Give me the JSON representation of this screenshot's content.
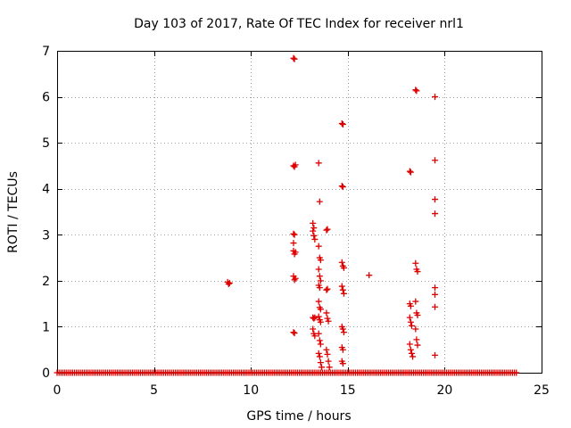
{
  "chart_data": {
    "type": "scatter",
    "title": "Day 103 of 2017, Rate Of TEC Index for receiver nrl1",
    "xlabel": "GPS time / hours",
    "ylabel": "ROTI / TECUs",
    "xlim": [
      0,
      25
    ],
    "ylim": [
      0,
      7
    ],
    "x_ticks": [
      0,
      5,
      10,
      15,
      20,
      25
    ],
    "y_ticks": [
      0,
      1,
      2,
      3,
      4,
      5,
      6,
      7
    ],
    "x_tick_labels": [
      "0",
      "5",
      "10",
      "15",
      "20",
      "25"
    ],
    "y_tick_labels": [
      "0",
      "1",
      "2",
      "3",
      "4",
      "5",
      "6",
      "7"
    ],
    "grid": true,
    "legend": "none",
    "marker": "plus",
    "color": "#dd0000",
    "baseline": {
      "y": 0,
      "x_range": [
        0,
        23.7
      ],
      "x_step": 0.1
    },
    "points": [
      [
        8.8,
        1.97
      ],
      [
        8.85,
        1.93
      ],
      [
        8.9,
        1.95
      ],
      [
        12.2,
        6.84
      ],
      [
        12.25,
        6.82
      ],
      [
        12.2,
        4.5
      ],
      [
        12.25,
        4.48
      ],
      [
        12.3,
        4.52
      ],
      [
        12.2,
        3.02
      ],
      [
        12.25,
        3.0
      ],
      [
        12.2,
        2.82
      ],
      [
        12.2,
        2.65
      ],
      [
        12.25,
        2.58
      ],
      [
        12.3,
        2.62
      ],
      [
        12.2,
        2.1
      ],
      [
        12.25,
        2.02
      ],
      [
        12.3,
        2.05
      ],
      [
        12.2,
        0.88
      ],
      [
        12.25,
        0.86
      ],
      [
        13.2,
        3.25
      ],
      [
        13.25,
        3.15
      ],
      [
        13.2,
        3.08
      ],
      [
        13.25,
        2.98
      ],
      [
        13.3,
        2.9
      ],
      [
        13.2,
        1.2
      ],
      [
        13.25,
        1.18
      ],
      [
        13.3,
        1.2
      ],
      [
        13.2,
        0.95
      ],
      [
        13.25,
        0.85
      ],
      [
        13.3,
        0.8
      ],
      [
        13.5,
        4.56
      ],
      [
        13.55,
        3.72
      ],
      [
        13.5,
        2.75
      ],
      [
        13.55,
        2.5
      ],
      [
        13.6,
        2.45
      ],
      [
        13.5,
        2.25
      ],
      [
        13.55,
        2.1
      ],
      [
        13.6,
        2.0
      ],
      [
        13.5,
        1.9
      ],
      [
        13.55,
        1.85
      ],
      [
        13.5,
        1.55
      ],
      [
        13.55,
        1.42
      ],
      [
        13.6,
        1.38
      ],
      [
        13.5,
        1.22
      ],
      [
        13.55,
        1.15
      ],
      [
        13.6,
        1.1
      ],
      [
        13.5,
        0.85
      ],
      [
        13.55,
        0.7
      ],
      [
        13.6,
        0.62
      ],
      [
        13.5,
        0.42
      ],
      [
        13.55,
        0.35
      ],
      [
        13.6,
        0.22
      ],
      [
        13.65,
        0.12
      ],
      [
        13.9,
        3.1
      ],
      [
        13.95,
        3.12
      ],
      [
        13.9,
        1.8
      ],
      [
        13.95,
        1.82
      ],
      [
        13.9,
        1.3
      ],
      [
        13.95,
        1.18
      ],
      [
        14.0,
        1.12
      ],
      [
        13.9,
        0.5
      ],
      [
        13.95,
        0.4
      ],
      [
        14.0,
        0.25
      ],
      [
        14.05,
        0.12
      ],
      [
        14.7,
        5.42
      ],
      [
        14.75,
        5.4
      ],
      [
        14.7,
        4.06
      ],
      [
        14.75,
        4.04
      ],
      [
        14.7,
        2.4
      ],
      [
        14.75,
        2.32
      ],
      [
        14.8,
        2.28
      ],
      [
        14.7,
        1.88
      ],
      [
        14.75,
        1.8
      ],
      [
        14.8,
        1.72
      ],
      [
        14.7,
        1.0
      ],
      [
        14.75,
        0.95
      ],
      [
        14.8,
        0.88
      ],
      [
        14.7,
        0.55
      ],
      [
        14.75,
        0.5
      ],
      [
        14.7,
        0.25
      ],
      [
        14.75,
        0.2
      ],
      [
        16.1,
        2.12
      ],
      [
        18.2,
        4.38
      ],
      [
        18.25,
        4.36
      ],
      [
        18.2,
        1.5
      ],
      [
        18.25,
        1.45
      ],
      [
        18.2,
        1.2
      ],
      [
        18.25,
        1.1
      ],
      [
        18.3,
        1.02
      ],
      [
        18.2,
        0.62
      ],
      [
        18.25,
        0.5
      ],
      [
        18.3,
        0.42
      ],
      [
        18.35,
        0.35
      ],
      [
        18.5,
        6.15
      ],
      [
        18.55,
        6.13
      ],
      [
        18.5,
        2.38
      ],
      [
        18.55,
        2.25
      ],
      [
        18.6,
        2.2
      ],
      [
        18.5,
        1.55
      ],
      [
        18.55,
        1.3
      ],
      [
        18.6,
        1.25
      ],
      [
        18.5,
        0.95
      ],
      [
        18.55,
        0.72
      ],
      [
        18.6,
        0.6
      ],
      [
        19.5,
        6.0
      ],
      [
        19.5,
        4.62
      ],
      [
        19.5,
        3.77
      ],
      [
        19.5,
        3.46
      ],
      [
        19.5,
        1.85
      ],
      [
        19.5,
        1.7
      ],
      [
        19.5,
        1.43
      ],
      [
        19.5,
        0.38
      ]
    ]
  }
}
